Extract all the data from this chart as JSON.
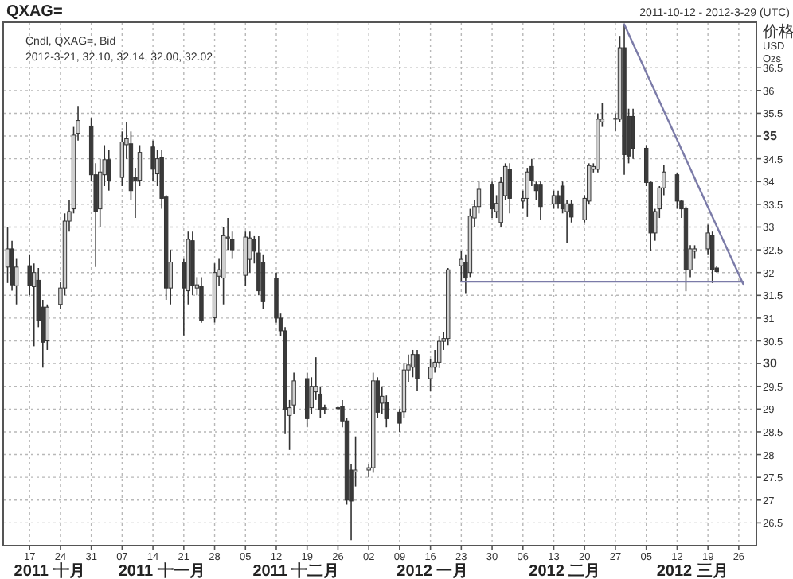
{
  "chart_data": {
    "type": "candlestick",
    "title": "QXAG=",
    "subtitle": "2011-10-12 - 2012-3-29 (UTC)",
    "ylabel": "价格 USD Ozs",
    "annotations": [
      "Cndl, QXAG=, Bid",
      "2012-3-21, 32.10, 32.14, 32.00, 32.02",
      "2011 十月",
      "2011 十一月",
      "2011 十二月",
      "2012 一月",
      "2012 二月",
      "2012 三月"
    ],
    "x": [
      "2011-10-12",
      "2011-10-13",
      "2011-10-14",
      "2011-10-17",
      "2011-10-18",
      "2011-10-19",
      "2011-10-20",
      "2011-10-21",
      "2011-10-24",
      "2011-10-25",
      "2011-10-26",
      "2011-10-27",
      "2011-10-28",
      "2011-10-31",
      "2011-11-01",
      "2011-11-02",
      "2011-11-03",
      "2011-11-04",
      "2011-11-07",
      "2011-11-08",
      "2011-11-09",
      "2011-11-10",
      "2011-11-11",
      "2011-11-14",
      "2011-11-15",
      "2011-11-16",
      "2011-11-17",
      "2011-11-18",
      "2011-11-21",
      "2011-11-22",
      "2011-11-23",
      "2011-11-24",
      "2011-11-25",
      "2011-11-28",
      "2011-11-29",
      "2011-11-30",
      "2011-12-01",
      "2011-12-02",
      "2011-12-05",
      "2011-12-06",
      "2011-12-07",
      "2011-12-08",
      "2011-12-09",
      "2011-12-12",
      "2011-12-13",
      "2011-12-14",
      "2011-12-15",
      "2011-12-16",
      "2011-12-19",
      "2011-12-20",
      "2011-12-21",
      "2011-12-22",
      "2011-12-23",
      "2011-12-26",
      "2011-12-27",
      "2011-12-28",
      "2011-12-29",
      "2011-12-30",
      "2012-01-02",
      "2012-01-03",
      "2012-01-04",
      "2012-01-05",
      "2012-01-06",
      "2012-01-09",
      "2012-01-10",
      "2012-01-11",
      "2012-01-12",
      "2012-01-13",
      "2012-01-16",
      "2012-01-17",
      "2012-01-18",
      "2012-01-19",
      "2012-01-20",
      "2012-01-23",
      "2012-01-24",
      "2012-01-25",
      "2012-01-26",
      "2012-01-27",
      "2012-01-30",
      "2012-01-31",
      "2012-02-01",
      "2012-02-02",
      "2012-02-03",
      "2012-02-06",
      "2012-02-07",
      "2012-02-08",
      "2012-02-09",
      "2012-02-10",
      "2012-02-13",
      "2012-02-14",
      "2012-02-15",
      "2012-02-16",
      "2012-02-17",
      "2012-02-20",
      "2012-02-21",
      "2012-02-22",
      "2012-02-23",
      "2012-02-24",
      "2012-02-27",
      "2012-02-28",
      "2012-02-29",
      "2012-03-01",
      "2012-03-02",
      "2012-03-05",
      "2012-03-06",
      "2012-03-07",
      "2012-03-08",
      "2012-03-09",
      "2012-03-12",
      "2012-03-13",
      "2012-03-14",
      "2012-03-15",
      "2012-03-16",
      "2012-03-19",
      "2012-03-20",
      "2012-03-21"
    ],
    "ohlc": [
      [
        32.12,
        32.99,
        31.77,
        32.52
      ],
      [
        32.52,
        32.7,
        31.6,
        31.73
      ],
      [
        31.71,
        32.3,
        31.3,
        32.12
      ],
      [
        32.15,
        32.4,
        31.5,
        31.71
      ],
      [
        31.69,
        32.2,
        30.38,
        32.0
      ],
      [
        31.83,
        32.1,
        30.8,
        30.95
      ],
      [
        31.24,
        31.4,
        29.91,
        30.47
      ],
      [
        30.5,
        31.3,
        30.3,
        31.24
      ],
      [
        31.3,
        31.8,
        31.2,
        31.66
      ],
      [
        31.66,
        33.3,
        31.5,
        33.13
      ],
      [
        33.13,
        33.6,
        32.9,
        33.34
      ],
      [
        33.4,
        35.2,
        33.3,
        35.02
      ],
      [
        35.06,
        35.66,
        34.9,
        35.34
      ],
      [
        35.22,
        35.4,
        34.0,
        34.15
      ],
      [
        34.15,
        34.4,
        32.12,
        33.34
      ],
      [
        33.4,
        34.5,
        33.0,
        34.21
      ],
      [
        34.15,
        34.8,
        33.9,
        34.48
      ],
      [
        34.48,
        34.7,
        33.8,
        34.03
      ],
      [
        34.09,
        35.1,
        33.9,
        34.87
      ],
      [
        34.81,
        35.3,
        34.5,
        34.94
      ],
      [
        34.83,
        35.1,
        33.6,
        33.8
      ],
      [
        34.09,
        34.3,
        33.2,
        34.01
      ],
      [
        34.03,
        34.8,
        33.9,
        34.64
      ],
      [
        34.76,
        34.9,
        34.0,
        34.27
      ],
      [
        34.17,
        34.7,
        33.9,
        34.5
      ],
      [
        34.52,
        34.7,
        33.4,
        33.63
      ],
      [
        33.66,
        33.7,
        31.4,
        31.66
      ],
      [
        31.66,
        32.5,
        31.3,
        32.23
      ],
      [
        32.23,
        32.3,
        30.62,
        31.66
      ],
      [
        31.6,
        32.9,
        31.3,
        32.73
      ],
      [
        32.7,
        32.9,
        31.5,
        31.71
      ],
      [
        31.66,
        31.9,
        31.5,
        31.73
      ],
      [
        31.69,
        31.9,
        30.9,
        30.95
      ],
      [
        31.01,
        32.2,
        30.9,
        32.0
      ],
      [
        31.92,
        32.3,
        31.7,
        32.06
      ],
      [
        31.88,
        33.0,
        31.3,
        32.81
      ],
      [
        32.76,
        33.2,
        32.5,
        32.78
      ],
      [
        32.73,
        32.9,
        32.3,
        32.5
      ],
      [
        31.94,
        32.9,
        31.7,
        32.78
      ],
      [
        32.29,
        32.9,
        32.0,
        32.76
      ],
      [
        32.73,
        32.8,
        32.2,
        32.47
      ],
      [
        32.43,
        32.8,
        31.5,
        31.6
      ],
      [
        32.23,
        32.4,
        31.2,
        31.36
      ],
      [
        31.88,
        32.0,
        30.9,
        31.0
      ],
      [
        31.0,
        31.1,
        30.6,
        30.72
      ],
      [
        30.72,
        30.8,
        28.45,
        28.98
      ],
      [
        28.86,
        29.2,
        28.1,
        29.03
      ],
      [
        29.09,
        29.8,
        28.9,
        29.62
      ],
      [
        29.67,
        29.8,
        28.6,
        28.79
      ],
      [
        29.03,
        29.7,
        28.9,
        29.5
      ],
      [
        29.38,
        30.14,
        29.2,
        29.5
      ],
      [
        29.33,
        29.5,
        28.8,
        28.98
      ],
      [
        29.03,
        29.1,
        28.9,
        28.98
      ],
      [
        29.03,
        29.05,
        28.98,
        29.02
      ],
      [
        29.06,
        29.2,
        28.6,
        28.74
      ],
      [
        28.74,
        28.8,
        26.9,
        27.0
      ],
      [
        27.66,
        27.8,
        26.12,
        26.98
      ],
      [
        27.62,
        28.4,
        27.3,
        27.66
      ],
      [
        27.66,
        27.8,
        27.5,
        27.71
      ],
      [
        27.71,
        29.8,
        27.6,
        29.62
      ],
      [
        29.62,
        29.7,
        28.8,
        28.93
      ],
      [
        29.13,
        29.5,
        28.9,
        29.28
      ],
      [
        29.15,
        29.3,
        28.6,
        28.79
      ],
      [
        28.93,
        29.0,
        28.5,
        28.69
      ],
      [
        28.94,
        30.0,
        28.8,
        29.86
      ],
      [
        29.86,
        30.2,
        29.6,
        29.97
      ],
      [
        29.92,
        30.3,
        29.7,
        30.2
      ],
      [
        30.2,
        30.3,
        29.4,
        29.67
      ],
      [
        29.67,
        30.1,
        29.4,
        29.92
      ],
      [
        29.92,
        30.3,
        29.8,
        30.03
      ],
      [
        30.03,
        30.6,
        29.9,
        30.49
      ],
      [
        30.49,
        30.7,
        30.3,
        30.55
      ],
      [
        30.55,
        32.1,
        30.4,
        32.06
      ],
      [
        32.15,
        32.47,
        31.8,
        32.29
      ],
      [
        32.23,
        32.4,
        31.53,
        31.88
      ],
      [
        32.0,
        33.4,
        31.9,
        33.24
      ],
      [
        33.2,
        33.6,
        33.0,
        33.45
      ],
      [
        33.45,
        34.0,
        33.3,
        33.83
      ],
      [
        33.94,
        34.0,
        33.2,
        33.4
      ],
      [
        33.34,
        33.7,
        33.2,
        33.52
      ],
      [
        33.1,
        34.1,
        33.0,
        33.98
      ],
      [
        33.69,
        34.4,
        33.6,
        34.33
      ],
      [
        34.27,
        34.4,
        33.3,
        33.63
      ],
      [
        33.57,
        33.8,
        33.4,
        33.63
      ],
      [
        33.63,
        34.3,
        33.22,
        34.21
      ],
      [
        34.33,
        34.5,
        33.9,
        34.03
      ],
      [
        33.94,
        34.0,
        33.6,
        33.8
      ],
      [
        33.94,
        34.0,
        33.16,
        33.45
      ],
      [
        33.51,
        33.8,
        33.4,
        33.69
      ],
      [
        33.69,
        33.8,
        33.4,
        33.51
      ],
      [
        33.9,
        34.0,
        33.3,
        33.4
      ],
      [
        33.34,
        33.6,
        32.64,
        33.51
      ],
      [
        33.51,
        33.6,
        33.1,
        33.22
      ],
      [
        33.16,
        33.7,
        33.1,
        33.63
      ],
      [
        33.57,
        34.4,
        33.5,
        34.35
      ],
      [
        34.27,
        34.4,
        34.2,
        34.33
      ],
      [
        34.27,
        35.5,
        34.2,
        35.37
      ],
      [
        35.31,
        35.72,
        35.2,
        35.37
      ],
      [
        35.37,
        35.5,
        35.1,
        35.39
      ],
      [
        35.37,
        37.2,
        35.3,
        36.94
      ],
      [
        36.94,
        37.47,
        34.15,
        34.59
      ],
      [
        35.43,
        35.6,
        34.4,
        34.56
      ],
      [
        35.43,
        35.6,
        34.5,
        34.73
      ],
      [
        34.73,
        34.8,
        33.9,
        33.98
      ],
      [
        33.98,
        34.0,
        32.47,
        32.87
      ],
      [
        32.87,
        33.4,
        32.7,
        33.34
      ],
      [
        33.4,
        33.9,
        33.2,
        33.86
      ],
      [
        33.86,
        34.36,
        33.7,
        34.21
      ],
      [
        34.15,
        34.2,
        33.4,
        33.57
      ],
      [
        33.57,
        33.6,
        33.2,
        33.4
      ],
      [
        33.4,
        33.45,
        31.59,
        32.06
      ],
      [
        32.06,
        32.6,
        31.9,
        32.52
      ],
      [
        32.47,
        32.6,
        32.3,
        32.52
      ],
      [
        32.52,
        33.05,
        32.4,
        32.87
      ],
      [
        32.81,
        32.9,
        31.77,
        32.06
      ],
      [
        32.1,
        32.14,
        32.0,
        32.02
      ]
    ],
    "series": [
      {
        "type": "line",
        "x": [
          "2012-01-23",
          "2012-03-27"
        ],
        "values": [
          31.8,
          31.8
        ],
        "color": "#7b7ba8"
      },
      {
        "type": "line",
        "x": [
          "2012-02-29",
          "2012-03-27"
        ],
        "values": [
          37.45,
          31.75
        ],
        "color": "#7b7ba8"
      }
    ],
    "xlim": [
      "2011-10-11",
      "2012-03-30"
    ],
    "xticks": [
      {
        "value": "2011-10-17",
        "label": "17"
      },
      {
        "value": "2011-10-24",
        "label": "24"
      },
      {
        "value": "2011-10-31",
        "label": "31"
      },
      {
        "value": "2011-11-07",
        "label": "07"
      },
      {
        "value": "2011-11-14",
        "label": "14"
      },
      {
        "value": "2011-11-21",
        "label": "21"
      },
      {
        "value": "2011-11-28",
        "label": "28"
      },
      {
        "value": "2011-12-05",
        "label": "05"
      },
      {
        "value": "2011-12-12",
        "label": "12"
      },
      {
        "value": "2011-12-19",
        "label": "19"
      },
      {
        "value": "2011-12-26",
        "label": "26"
      },
      {
        "value": "2012-01-02",
        "label": "02"
      },
      {
        "value": "2012-01-09",
        "label": "09"
      },
      {
        "value": "2012-01-16",
        "label": "16"
      },
      {
        "value": "2012-01-23",
        "label": "23"
      },
      {
        "value": "2012-01-30",
        "label": "30"
      },
      {
        "value": "2012-02-06",
        "label": "06"
      },
      {
        "value": "2012-02-13",
        "label": "13"
      },
      {
        "value": "2012-02-20",
        "label": "20"
      },
      {
        "value": "2012-02-27",
        "label": "27"
      },
      {
        "value": "2012-03-05",
        "label": "05"
      },
      {
        "value": "2012-03-12",
        "label": "12"
      },
      {
        "value": "2012-03-19",
        "label": "19"
      },
      {
        "value": "2012-03-26",
        "label": "26"
      }
    ],
    "ylim": [
      26.0,
      37.5
    ],
    "yticks": [
      26.5,
      27,
      27.5,
      28,
      28.5,
      29,
      29.5,
      30,
      30.5,
      31,
      31.5,
      32,
      32.5,
      33,
      33.5,
      34,
      34.5,
      35,
      35.5,
      36,
      36.5
    ],
    "grid": true
  }
}
